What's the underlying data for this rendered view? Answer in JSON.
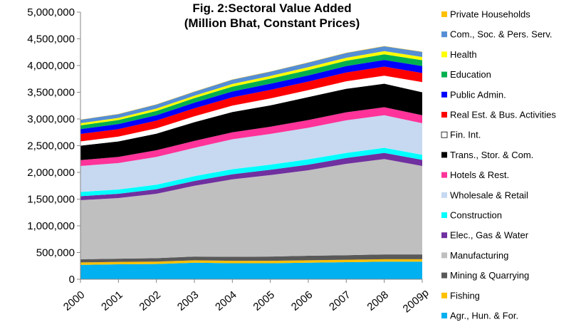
{
  "chart_data": {
    "type": "area",
    "stacked": true,
    "title_lines": [
      "Fig. 2:Sectoral Value Added",
      "(Million Bhat, Constant Prices)"
    ],
    "x": [
      "2000",
      "2001",
      "2002",
      "2003",
      "2004",
      "2005",
      "2006",
      "2007",
      "2008",
      "2009p"
    ],
    "ylim": [
      0,
      5000000
    ],
    "yticks": [
      "0",
      "500,000",
      "1,000,000",
      "1,500,000",
      "2,000,000",
      "2,500,000",
      "3,000,000",
      "3,500,000",
      "4,000,000",
      "4,500,000",
      "5,000,000"
    ],
    "legend_position": "right",
    "grid": false,
    "series": [
      {
        "name": "Agr., Hun. & For.",
        "color": "#00B0F0",
        "values": [
          270000,
          280000,
          285000,
          310000,
          300000,
          300000,
          310000,
          320000,
          330000,
          330000
        ]
      },
      {
        "name": "Fishing",
        "color": "#FFC000",
        "values": [
          45000,
          45000,
          45000,
          45000,
          45000,
          45000,
          45000,
          45000,
          45000,
          45000
        ]
      },
      {
        "name": "Mining & Quarrying",
        "color": "#595959",
        "values": [
          60000,
          60000,
          65000,
          70000,
          75000,
          80000,
          85000,
          85000,
          90000,
          90000
        ]
      },
      {
        "name": "Manufacturing",
        "color": "#BFBFBF",
        "values": [
          1105000,
          1135000,
          1205000,
          1325000,
          1450000,
          1525000,
          1600000,
          1710000,
          1785000,
          1655000
        ]
      },
      {
        "name": "Elec., Gas & Water",
        "color": "#7030A0",
        "values": [
          75000,
          80000,
          85000,
          90000,
          95000,
          100000,
          105000,
          110000,
          115000,
          115000
        ]
      },
      {
        "name": "Construction",
        "color": "#00FFFF",
        "values": [
          80000,
          80000,
          85000,
          90000,
          95000,
          95000,
          100000,
          95000,
          95000,
          95000
        ]
      },
      {
        "name": "Wholesale & Retail",
        "color": "#C6D9F1",
        "values": [
          485000,
          495000,
          520000,
          530000,
          560000,
          575000,
          590000,
          610000,
          610000,
          590000
        ]
      },
      {
        "name": "Hotels & Rest.",
        "color": "#FF3399",
        "values": [
          110000,
          115000,
          125000,
          130000,
          130000,
          135000,
          145000,
          150000,
          150000,
          150000
        ]
      },
      {
        "name": "Trans., Stor. & Com.",
        "color": "#000000",
        "values": [
          270000,
          290000,
          310000,
          350000,
          380000,
          400000,
          430000,
          440000,
          440000,
          430000
        ]
      },
      {
        "name": "Fin. Int.",
        "color": "#FFFFFF",
        "values": [
          80000,
          90000,
          100000,
          110000,
          120000,
          130000,
          130000,
          140000,
          150000,
          190000
        ]
      },
      {
        "name": "Real Est. & Bus. Activities",
        "color": "#FF0000",
        "values": [
          140000,
          140000,
          145000,
          150000,
          155000,
          160000,
          160000,
          165000,
          170000,
          170000
        ]
      },
      {
        "name": "Public Admin.",
        "color": "#0000FF",
        "values": [
          90000,
          95000,
          100000,
          105000,
          110000,
          115000,
          115000,
          120000,
          125000,
          130000
        ]
      },
      {
        "name": "Education",
        "color": "#00B050",
        "values": [
          70000,
          75000,
          80000,
          85000,
          90000,
          95000,
          100000,
          100000,
          105000,
          110000
        ]
      },
      {
        "name": "Health",
        "color": "#FFFF00",
        "values": [
          40000,
          40000,
          45000,
          45000,
          50000,
          50000,
          55000,
          55000,
          60000,
          60000
        ]
      },
      {
        "name": "Com., Soc. & Pers. Serv.",
        "color": "#558ED5",
        "values": [
          65000,
          70000,
          75000,
          75000,
          80000,
          80000,
          85000,
          90000,
          90000,
          95000
        ]
      },
      {
        "name": "Private Households",
        "color": "#FFC000",
        "values": [
          5000,
          5000,
          5000,
          5000,
          5000,
          5000,
          5000,
          5000,
          5000,
          5000
        ]
      }
    ]
  }
}
